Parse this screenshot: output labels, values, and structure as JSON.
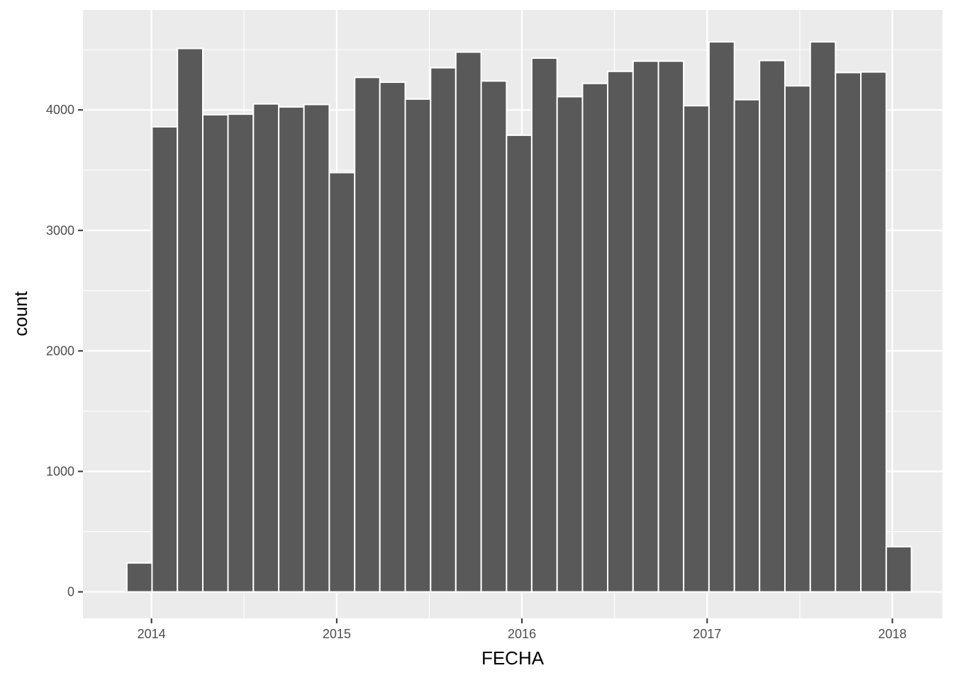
{
  "chart_data": {
    "type": "bar",
    "subtype": "histogram",
    "title": "",
    "xlabel": "FECHA",
    "ylabel": "count",
    "x_ticks": [
      "2014",
      "2015",
      "2016",
      "2017",
      "2018"
    ],
    "x_tick_values": [
      2014,
      2015,
      2016,
      2017,
      2018
    ],
    "y_ticks": [
      "0",
      "1000",
      "2000",
      "3000",
      "4000"
    ],
    "y_tick_values": [
      0,
      1000,
      2000,
      3000,
      4000
    ],
    "xlim": [
      2013.63,
      2018.27
    ],
    "ylim": [
      -220,
      4830
    ],
    "bin_width_years": 0.1367,
    "bins": [
      {
        "start": 2013.867,
        "end": 2014.003,
        "count": 240
      },
      {
        "start": 2014.003,
        "end": 2014.14,
        "count": 3860
      },
      {
        "start": 2014.14,
        "end": 2014.277,
        "count": 4510
      },
      {
        "start": 2014.277,
        "end": 2014.413,
        "count": 3960
      },
      {
        "start": 2014.413,
        "end": 2014.55,
        "count": 3965
      },
      {
        "start": 2014.55,
        "end": 2014.687,
        "count": 4050
      },
      {
        "start": 2014.687,
        "end": 2014.823,
        "count": 4025
      },
      {
        "start": 2014.823,
        "end": 2014.96,
        "count": 4045
      },
      {
        "start": 2014.96,
        "end": 2015.097,
        "count": 3480
      },
      {
        "start": 2015.097,
        "end": 2015.233,
        "count": 4270
      },
      {
        "start": 2015.233,
        "end": 2015.37,
        "count": 4230
      },
      {
        "start": 2015.37,
        "end": 2015.507,
        "count": 4090
      },
      {
        "start": 2015.507,
        "end": 2015.643,
        "count": 4350
      },
      {
        "start": 2015.643,
        "end": 2015.78,
        "count": 4480
      },
      {
        "start": 2015.78,
        "end": 2015.917,
        "count": 4240
      },
      {
        "start": 2015.917,
        "end": 2016.053,
        "count": 3790
      },
      {
        "start": 2016.053,
        "end": 2016.19,
        "count": 4430
      },
      {
        "start": 2016.19,
        "end": 2016.327,
        "count": 4110
      },
      {
        "start": 2016.327,
        "end": 2016.463,
        "count": 4220
      },
      {
        "start": 2016.463,
        "end": 2016.6,
        "count": 4320
      },
      {
        "start": 2016.6,
        "end": 2016.737,
        "count": 4405
      },
      {
        "start": 2016.737,
        "end": 2016.873,
        "count": 4405
      },
      {
        "start": 2016.873,
        "end": 2017.01,
        "count": 4035
      },
      {
        "start": 2017.01,
        "end": 2017.147,
        "count": 4565
      },
      {
        "start": 2017.147,
        "end": 2017.283,
        "count": 4085
      },
      {
        "start": 2017.283,
        "end": 2017.42,
        "count": 4410
      },
      {
        "start": 2017.42,
        "end": 2017.557,
        "count": 4200
      },
      {
        "start": 2017.557,
        "end": 2017.693,
        "count": 4565
      },
      {
        "start": 2017.693,
        "end": 2017.83,
        "count": 4310
      },
      {
        "start": 2017.83,
        "end": 2017.967,
        "count": 4315
      },
      {
        "start": 2017.967,
        "end": 2018.103,
        "count": 375
      }
    ],
    "grid": true,
    "legend": "none",
    "colors": {
      "panel_background": "#ebebeb",
      "grid_major": "#ffffff",
      "grid_minor": "#f6f6f6",
      "bar_fill": "#595959",
      "bar_outline": "#ffffff",
      "tick_text": "#4d4d4d",
      "tick_mark": "#333333",
      "axis_title": "#000000"
    }
  }
}
